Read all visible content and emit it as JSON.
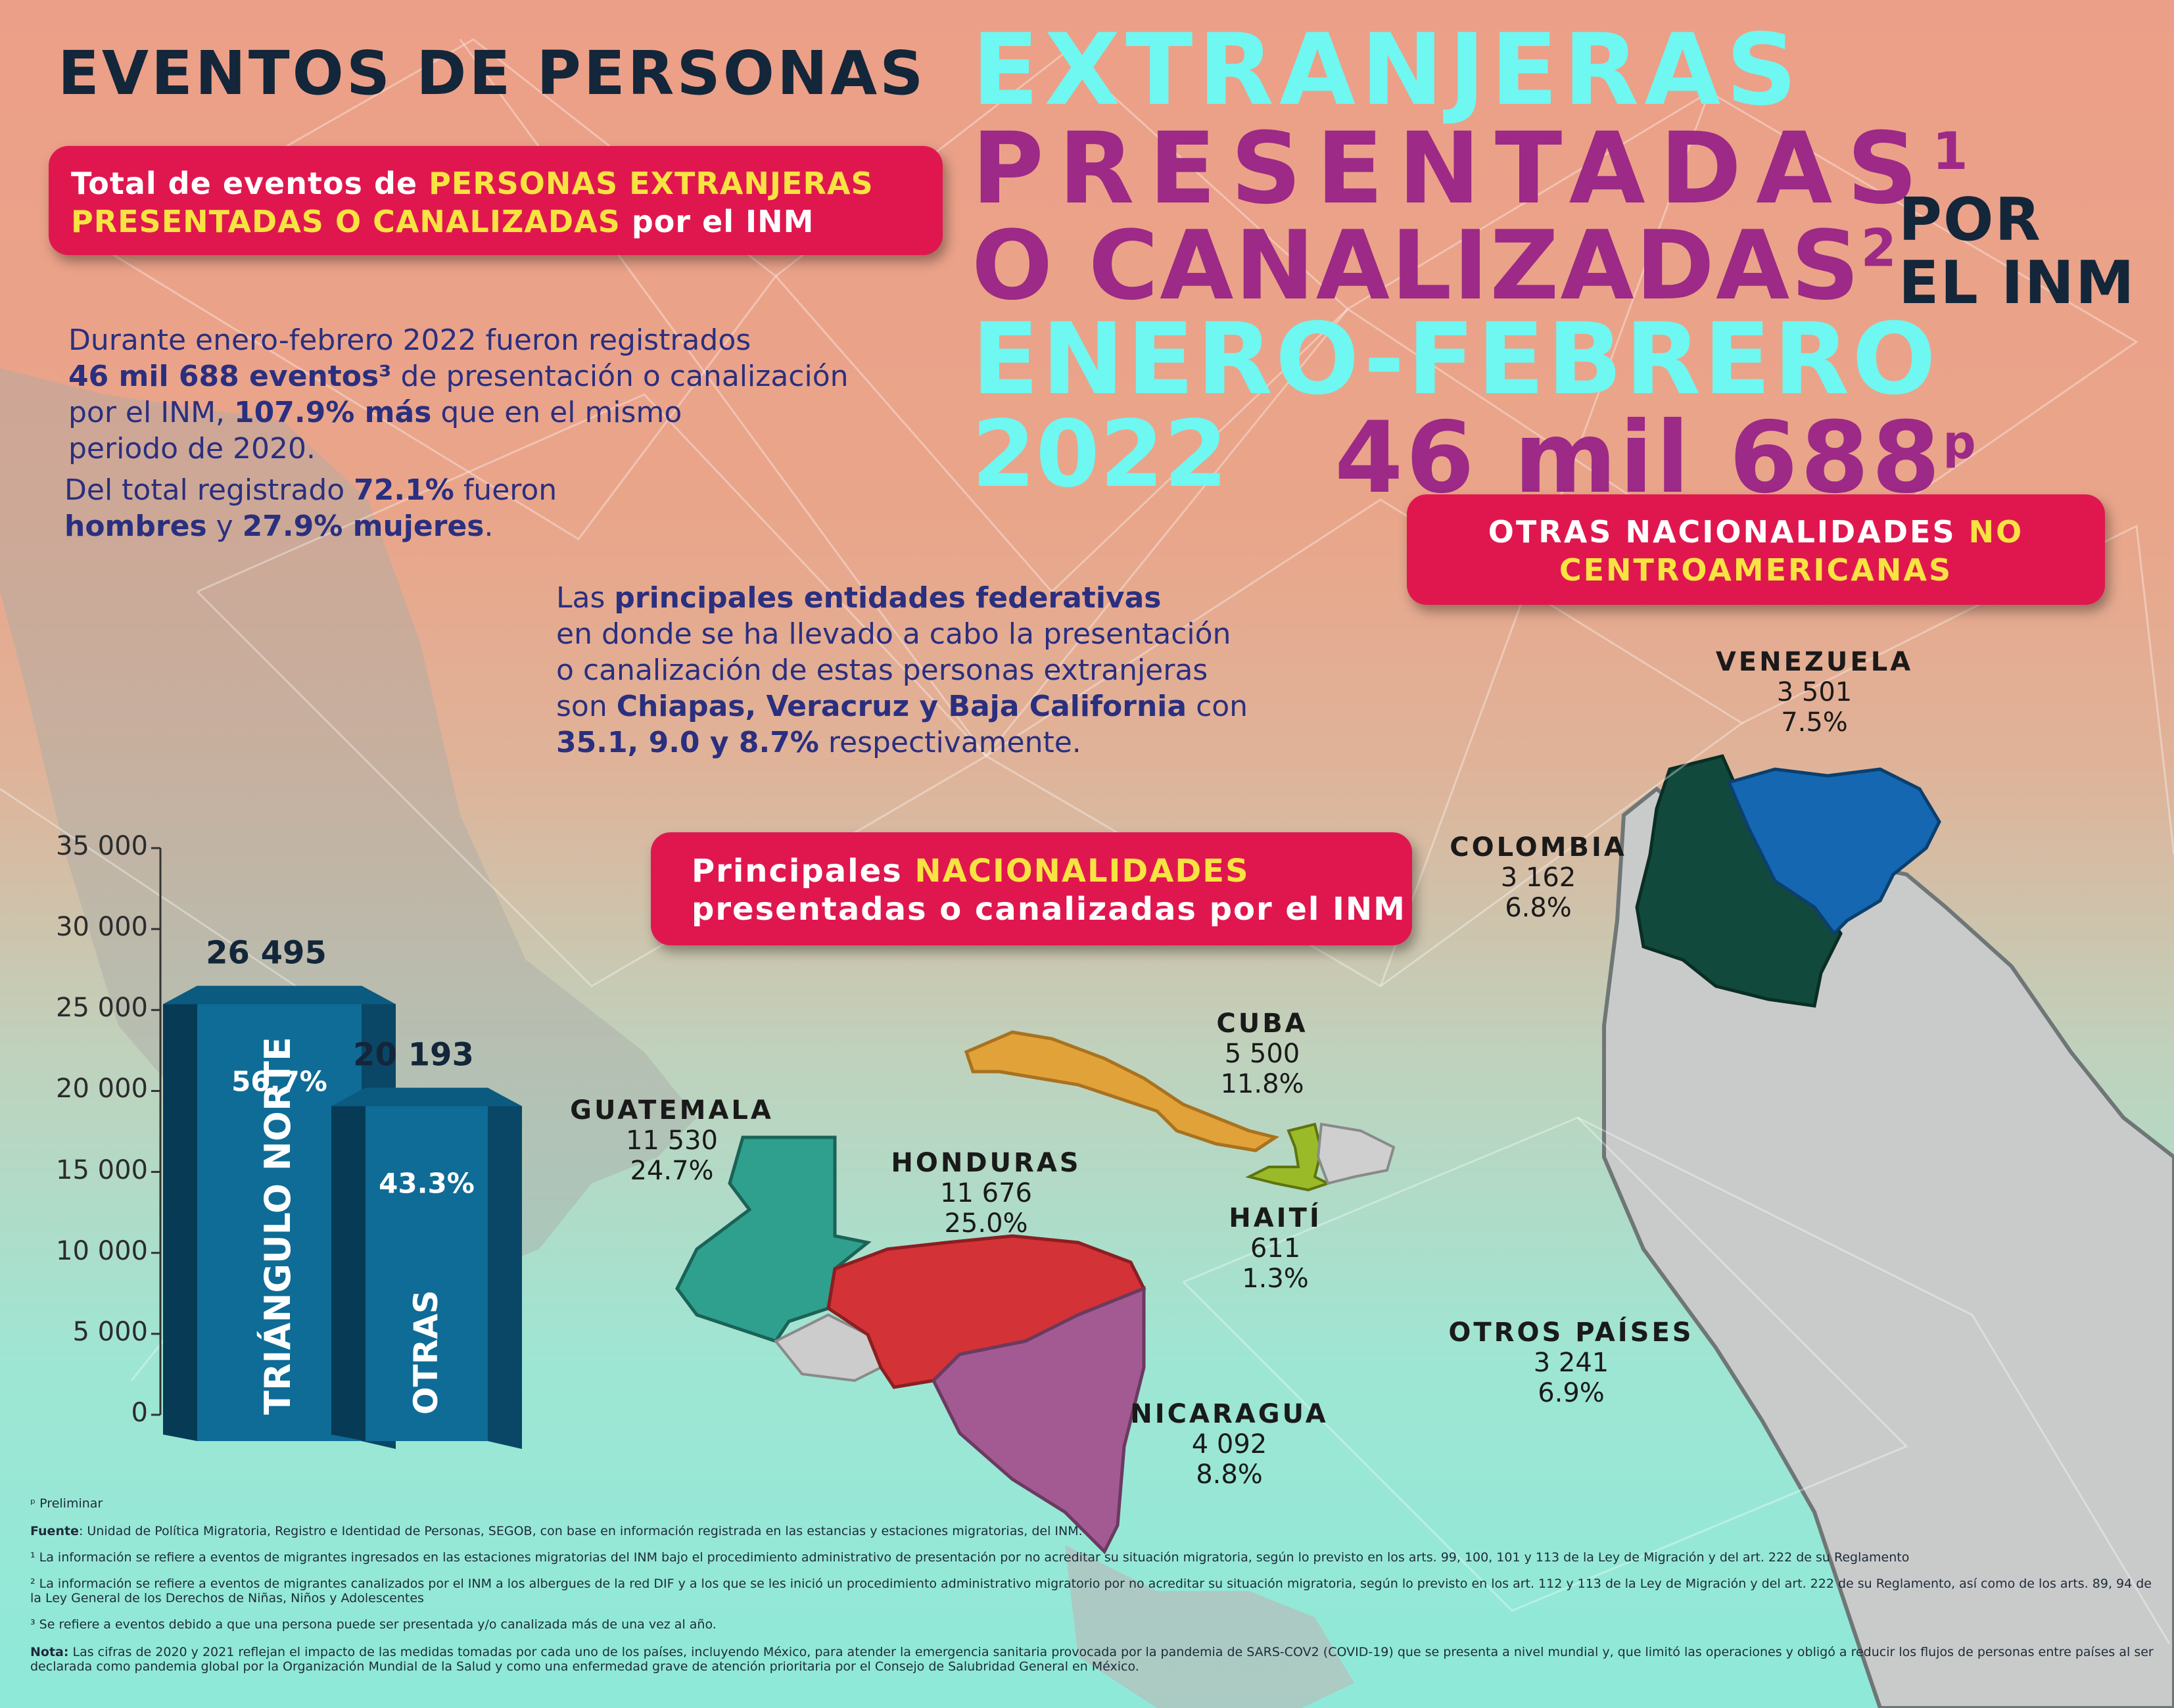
{
  "header": {
    "line1_dark": "EVENTOS DE PERSONAS",
    "line1_cyan": "EXTRANJERAS",
    "line2": "PRESENTADAS",
    "line2_sup": "1",
    "line3": "O CANALIZADAS",
    "line3_sup": "2",
    "por": "POR",
    "el_inm": "EL INM",
    "line4": "ENERO-FEBRERO",
    "year": "2022",
    "total": "46 mil 688",
    "total_sup": "p"
  },
  "total_pill": {
    "part1": "Total de eventos de ",
    "highlight1": "PERSONAS EXTRANJERAS",
    "highlight2": "PRESENTADAS O CANALIZADAS",
    "part2": " por el INM"
  },
  "summary": {
    "p1_a": "Durante enero-febrero 2022 fueron registrados",
    "p1_b": "46 mil 688 eventos³",
    "p1_c": " de presentación o canalización",
    "p1_d": "por el INM, ",
    "p1_e": "107.9% más",
    "p1_f": " que en el mismo",
    "p1_g": "periodo de 2020.",
    "p2_a": "Del total registrado ",
    "p2_b": "72.1%",
    "p2_c": " fueron",
    "p2_d": "hombres",
    "p2_e": " y ",
    "p2_f": "27.9% mujeres",
    "p2_g": "."
  },
  "entities": {
    "a": "Las ",
    "b": "principales entidades federativas",
    "c": "en donde se ha llevado a cabo la presentación",
    "d": "o canalización de estas personas extranjeras",
    "e": "son ",
    "f": "Chiapas, Veracruz y Baja California",
    "g": " con",
    "h": "35.1, 9.0 y 8.7%",
    "i": " respectivamente."
  },
  "otras_pill": {
    "a": "OTRAS NACIONALIDADES ",
    "b": "NO",
    "c": "CENTROAMERICANAS"
  },
  "nac_pill": {
    "a": "Principales ",
    "b": "NACIONALIDADES",
    "c": "presentadas o canalizadas por el INM"
  },
  "chart_data": {
    "type": "bar",
    "categories": [
      "TRIÁNGULO NORTE",
      "OTRAS"
    ],
    "values": [
      26495,
      20193
    ],
    "value_labels": [
      "26 495",
      "20 193"
    ],
    "percent_labels": [
      "56.7%",
      "43.3%"
    ],
    "ylim": [
      0,
      35000
    ],
    "yticks": [
      "0",
      "5 000",
      "10 000",
      "15 000",
      "20 000",
      "25 000",
      "30 000",
      "35 000"
    ],
    "bar_color": "#0e6c96"
  },
  "countries": [
    {
      "name": "GUATEMALA",
      "value": "11 530",
      "pct": "24.7%",
      "color": "#2fa08e"
    },
    {
      "name": "HONDURAS",
      "value": "11 676",
      "pct": "25.0%",
      "color": "#d33236"
    },
    {
      "name": "NICARAGUA",
      "value": "4 092",
      "pct": "8.8%",
      "color": "#a35a93"
    },
    {
      "name": "CUBA",
      "value": "5 500",
      "pct": "11.8%",
      "color": "#e2a23a"
    },
    {
      "name": "HAITÍ",
      "value": "611",
      "pct": "1.3%",
      "color": "#9bba28"
    },
    {
      "name": "VENEZUELA",
      "value": "3 501",
      "pct": "7.5%",
      "color": "#1467b0"
    },
    {
      "name": "COLOMBIA",
      "value": "3 162",
      "pct": "6.8%",
      "color": "#114a3c"
    },
    {
      "name": "OTROS PAÍSES",
      "value": "3 241",
      "pct": "6.9%",
      "color": "#c9c9c9"
    }
  ],
  "footnotes": {
    "p": "ᵖ Preliminar",
    "fuente_label": "Fuente",
    "fuente": ": Unidad de Política Migratoria, Registro e Identidad de Personas, SEGOB, con base en información registrada en las estancias y estaciones migratorias, del INM.",
    "n1": "¹ La información se refiere a eventos de migrantes ingresados en las estaciones migratorias del INM bajo el procedimiento administrativo de presentación por no acreditar su situación migratoria, según lo previsto en los arts. 99, 100, 101 y 113 de la Ley de Migración y del art. 222 de su Reglamento",
    "n2": "² La información se refiere a eventos de migrantes canalizados por el INM a los albergues de la red DIF y a los que se les inició un procedimiento administrativo migratorio por no acreditar su situación migratoria, según lo previsto en los art. 112 y 113 de la Ley de Migración y del art. 222 de su Reglamento, así como de los arts. 89, 94 de la Ley General de los Derechos de Niñas, Niños y Adolescentes",
    "n3": "³ Se refiere a eventos debido a que una persona puede ser presentada y/o canalizada más de una vez al año.",
    "nota_label": "Nota:",
    "nota": " Las cifras de 2020 y 2021 reflejan el impacto de las medidas tomadas por cada uno de los países, incluyendo México, para atender la emergencia sanitaria provocada por la pandemia de SARS-COV2 (COVID-19) que se presenta a nivel mundial y, que limitó las operaciones y obligó a reducir los flujos de personas entre países al ser declarada como pandemia global por la Organización Mundial de la Salud y como una enfermedad grave de atención prioritaria por el Consejo de Salubridad General en México."
  }
}
